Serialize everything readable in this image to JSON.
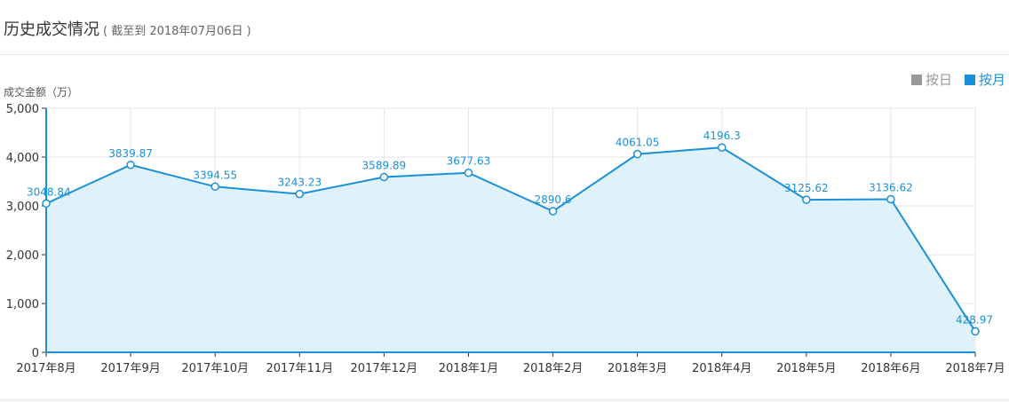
{
  "header": {
    "title": "历史成交情况",
    "subtitle": "( 截至到 2018年07月06日 )"
  },
  "legend": [
    {
      "label": "按日",
      "color": "#999999",
      "active": false
    },
    {
      "label": "按月",
      "color": "#1a90d8",
      "active": true
    }
  ],
  "colors": {
    "line": "#1a90d8",
    "area": "#dcf0f9",
    "label": "#1a90d8",
    "grid": "#e6e6e6"
  },
  "chart_data": {
    "type": "area",
    "ylabel": "成交金额（万）",
    "ylim": [
      0,
      5000
    ],
    "yticks": [
      "0",
      "1,000",
      "2,000",
      "3,000",
      "4,000",
      "5,000"
    ],
    "ytick_values": [
      0,
      1000,
      2000,
      3000,
      4000,
      5000
    ],
    "categories": [
      "2017年8月",
      "2017年9月",
      "2017年10月",
      "2017年11月",
      "2017年12月",
      "2018年1月",
      "2018年2月",
      "2018年3月",
      "2018年4月",
      "2018年5月",
      "2018年6月",
      "2018年7月"
    ],
    "values": [
      3048.84,
      3839.87,
      3394.55,
      3243.23,
      3589.89,
      3677.63,
      2890.6,
      4061.05,
      4196.3,
      3125.62,
      3136.62,
      428.97
    ],
    "value_labels": [
      "3048.84",
      "3839.87",
      "3394.55",
      "3243.23",
      "3589.89",
      "3677.63",
      "2890.6",
      "4061.05",
      "4196.3",
      "3125.62",
      "3136.62",
      "428.97"
    ],
    "grid": true,
    "legend_position": "top-right"
  }
}
